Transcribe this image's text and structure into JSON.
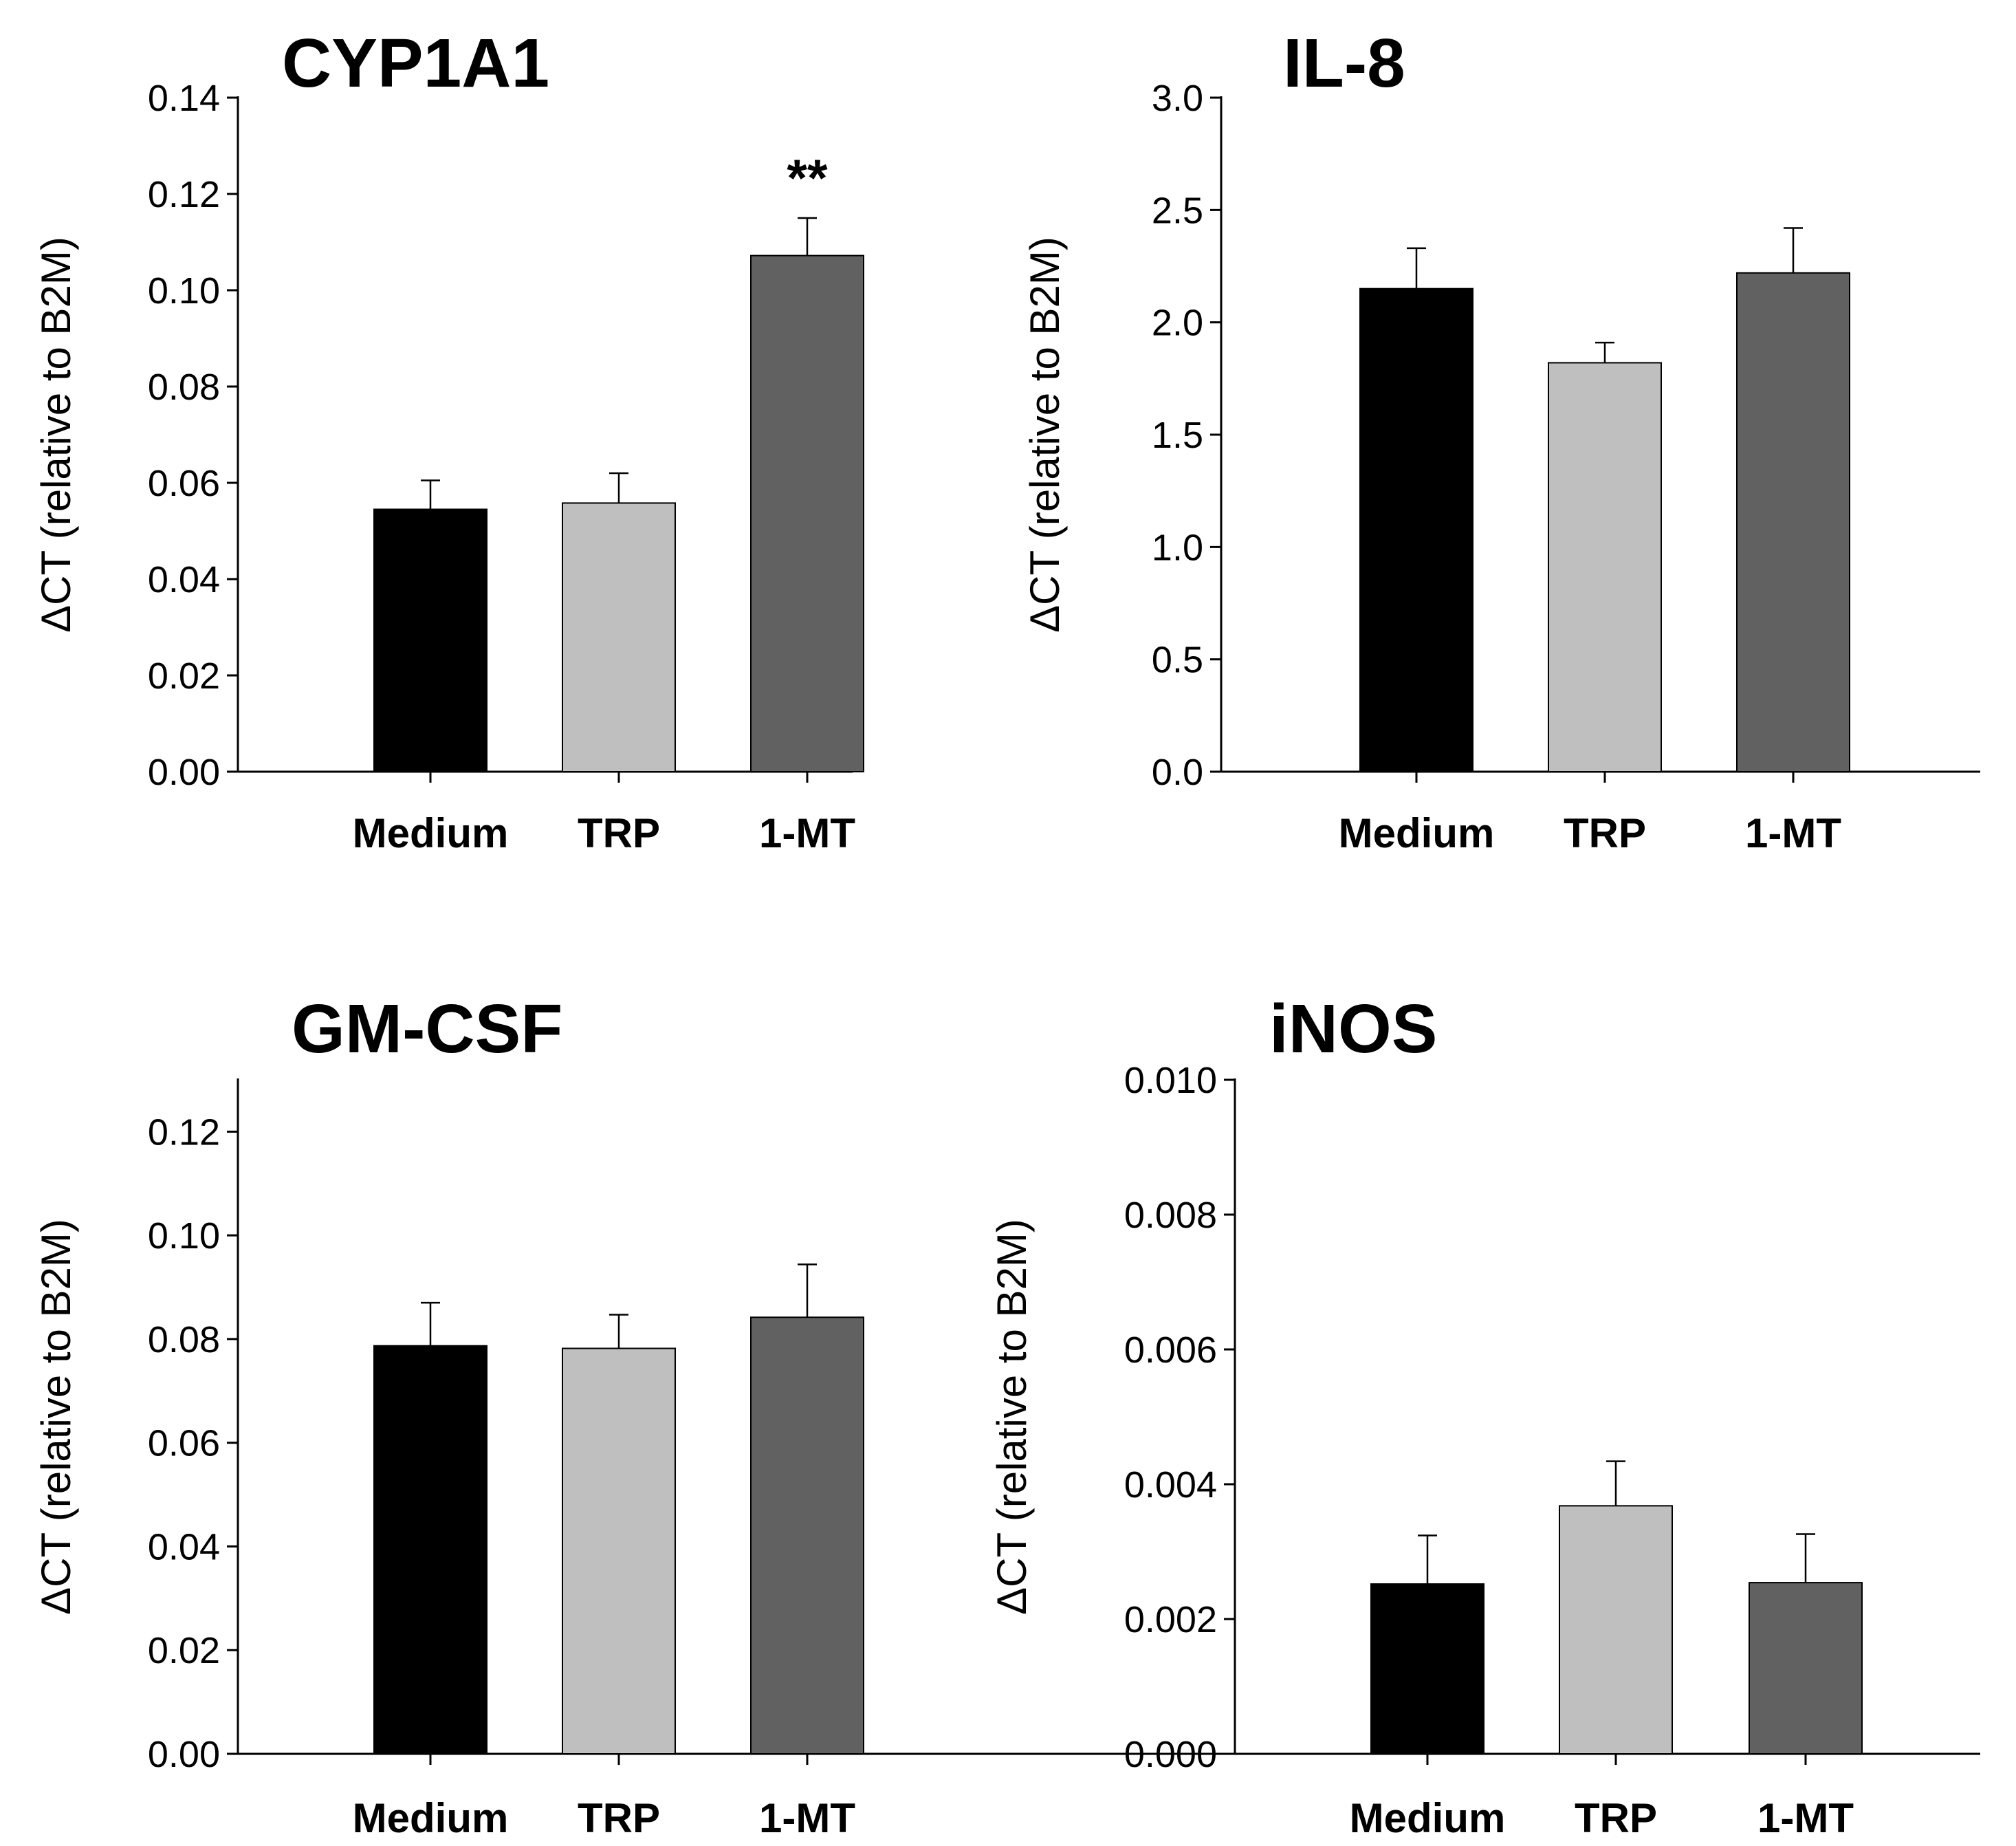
{
  "chart_data": [
    {
      "type": "bar",
      "title": "CYP1A1",
      "ylabel": "ΔCT (relative to B2M)",
      "xlabel": "",
      "categories": [
        "Medium",
        "TRP",
        "1-MT"
      ],
      "values": [
        0.0545,
        0.0558,
        0.1072
      ],
      "errors": [
        0.006,
        0.0062,
        0.0078
      ],
      "colors": [
        "#000000",
        "#bfbfbf",
        "#616161"
      ],
      "ylim": [
        0,
        0.14
      ],
      "yticks": [
        "0.00",
        "0.02",
        "0.04",
        "0.06",
        "0.08",
        "0.10",
        "0.12",
        "0.14"
      ],
      "annotations": [
        {
          "category": "1-MT",
          "text": "**"
        }
      ],
      "grid": false
    },
    {
      "type": "bar",
      "title": "IL-8",
      "ylabel": "ΔCT (relative to B2M)",
      "xlabel": "",
      "categories": [
        "Medium",
        "TRP",
        "1-MT"
      ],
      "values": [
        2.15,
        1.82,
        2.22
      ],
      "errors": [
        0.18,
        0.09,
        0.2
      ],
      "colors": [
        "#000000",
        "#bfbfbf",
        "#616161"
      ],
      "ylim": [
        0,
        3.0
      ],
      "yticks": [
        "0.0",
        "0.5",
        "1.0",
        "1.5",
        "2.0",
        "2.5",
        "3.0"
      ],
      "annotations": [],
      "grid": false
    },
    {
      "type": "bar",
      "title": "GM-CSF",
      "ylabel": "ΔCT (relative to B2M)",
      "xlabel": "",
      "categories": [
        "Medium",
        "TRP",
        "1-MT"
      ],
      "values": [
        0.0787,
        0.0782,
        0.0842
      ],
      "errors": [
        0.0083,
        0.0065,
        0.0102
      ],
      "colors": [
        "#000000",
        "#bfbfbf",
        "#616161"
      ],
      "ylim": [
        0,
        0.13
      ],
      "yticks": [
        "0.00",
        "0.02",
        "0.04",
        "0.06",
        "0.08",
        "0.10",
        "0.12"
      ],
      "annotations": [],
      "grid": false
    },
    {
      "type": "bar",
      "title": "iNOS",
      "ylabel": "ΔCT (relative to B2M)",
      "xlabel": "",
      "categories": [
        "Medium",
        "TRP",
        "1-MT"
      ],
      "values": [
        0.00252,
        0.00368,
        0.00254
      ],
      "errors": [
        0.00072,
        0.00066,
        0.00072
      ],
      "colors": [
        "#000000",
        "#bfbfbf",
        "#616161"
      ],
      "ylim": [
        0,
        0.01
      ],
      "yticks": [
        "0.000",
        "0.002",
        "0.004",
        "0.006",
        "0.008",
        "0.010"
      ],
      "annotations": [],
      "grid": false
    }
  ]
}
